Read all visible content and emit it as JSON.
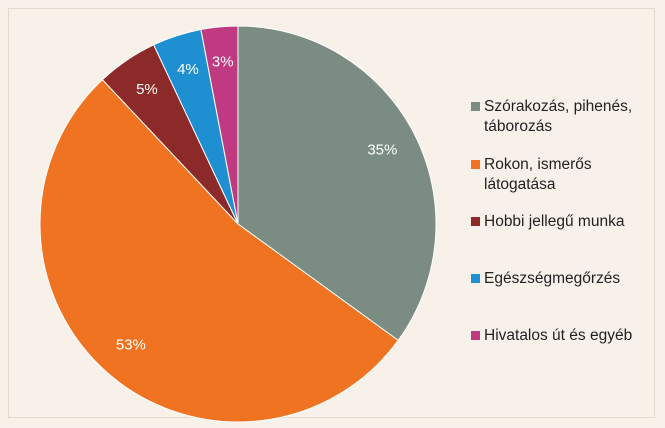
{
  "chart_data": {
    "type": "pie",
    "categories": [
      "Szórakozás, pihenés, táborozás",
      "Rokon, ismerős látogatása",
      "Hobbi jellegű munka",
      "Egészségmegőrzés",
      "Hivatalos út és egyéb"
    ],
    "values": [
      35,
      53,
      5,
      4,
      3
    ],
    "value_labels": [
      "35%",
      "53%",
      "5%",
      "4%",
      "3%"
    ],
    "colors": [
      "#7b8c82",
      "#f07322",
      "#8c2a2a",
      "#1e90d2",
      "#c03a82"
    ]
  }
}
